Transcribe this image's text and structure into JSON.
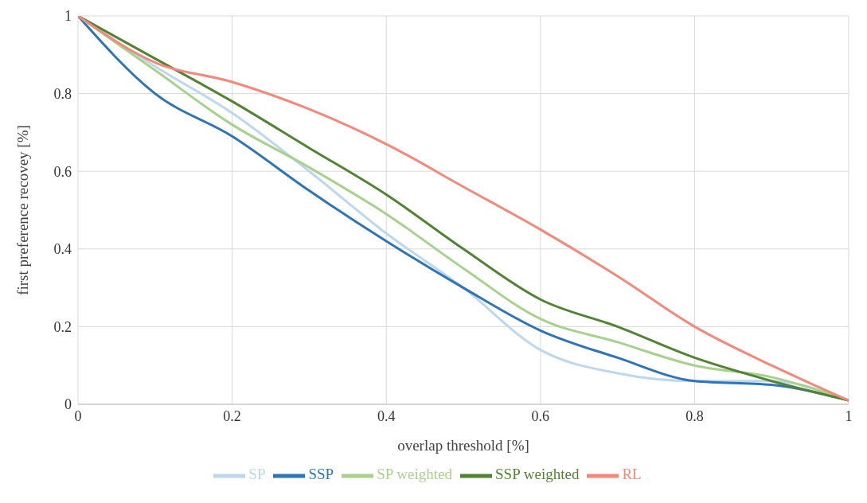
{
  "chart_data": {
    "type": "line",
    "xlabel": "overlap threshold [%]",
    "ylabel": "first preference recovey [%]",
    "x": [
      0,
      0.1,
      0.2,
      0.3,
      0.4,
      0.5,
      0.6,
      0.7,
      0.8,
      0.9,
      1
    ],
    "series": [
      {
        "name": "SP",
        "color": "#bdd7ee",
        "values": [
          1,
          0.87,
          0.75,
          0.6,
          0.44,
          0.3,
          0.14,
          0.08,
          0.06,
          0.06,
          0.01
        ]
      },
      {
        "name": "SSP",
        "color": "#2e75b6",
        "values": [
          1,
          0.8,
          0.69,
          0.55,
          0.42,
          0.3,
          0.19,
          0.12,
          0.06,
          0.05,
          0.01
        ]
      },
      {
        "name": "SP weighted",
        "color": "#a9d18e",
        "values": [
          1,
          0.86,
          0.72,
          0.61,
          0.49,
          0.35,
          0.22,
          0.16,
          0.1,
          0.07,
          0.01
        ]
      },
      {
        "name": "SSP weighted",
        "color": "#548235",
        "values": [
          1,
          0.89,
          0.78,
          0.66,
          0.54,
          0.4,
          0.27,
          0.2,
          0.12,
          0.06,
          0.01
        ]
      },
      {
        "name": "RL",
        "color": "#f4897b",
        "values": [
          1,
          0.88,
          0.83,
          0.76,
          0.67,
          0.56,
          0.45,
          0.33,
          0.2,
          0.1,
          0.01
        ]
      }
    ],
    "xlim": [
      0,
      1
    ],
    "xticks": [
      0,
      0.2,
      0.4,
      0.6,
      0.8,
      1
    ],
    "ylim": [
      0,
      1
    ],
    "yticks": [
      0,
      0.2,
      0.4,
      0.6,
      0.8,
      1
    ],
    "grid": true,
    "legend": "bottom",
    "marker": "none",
    "line_style": "solid"
  }
}
